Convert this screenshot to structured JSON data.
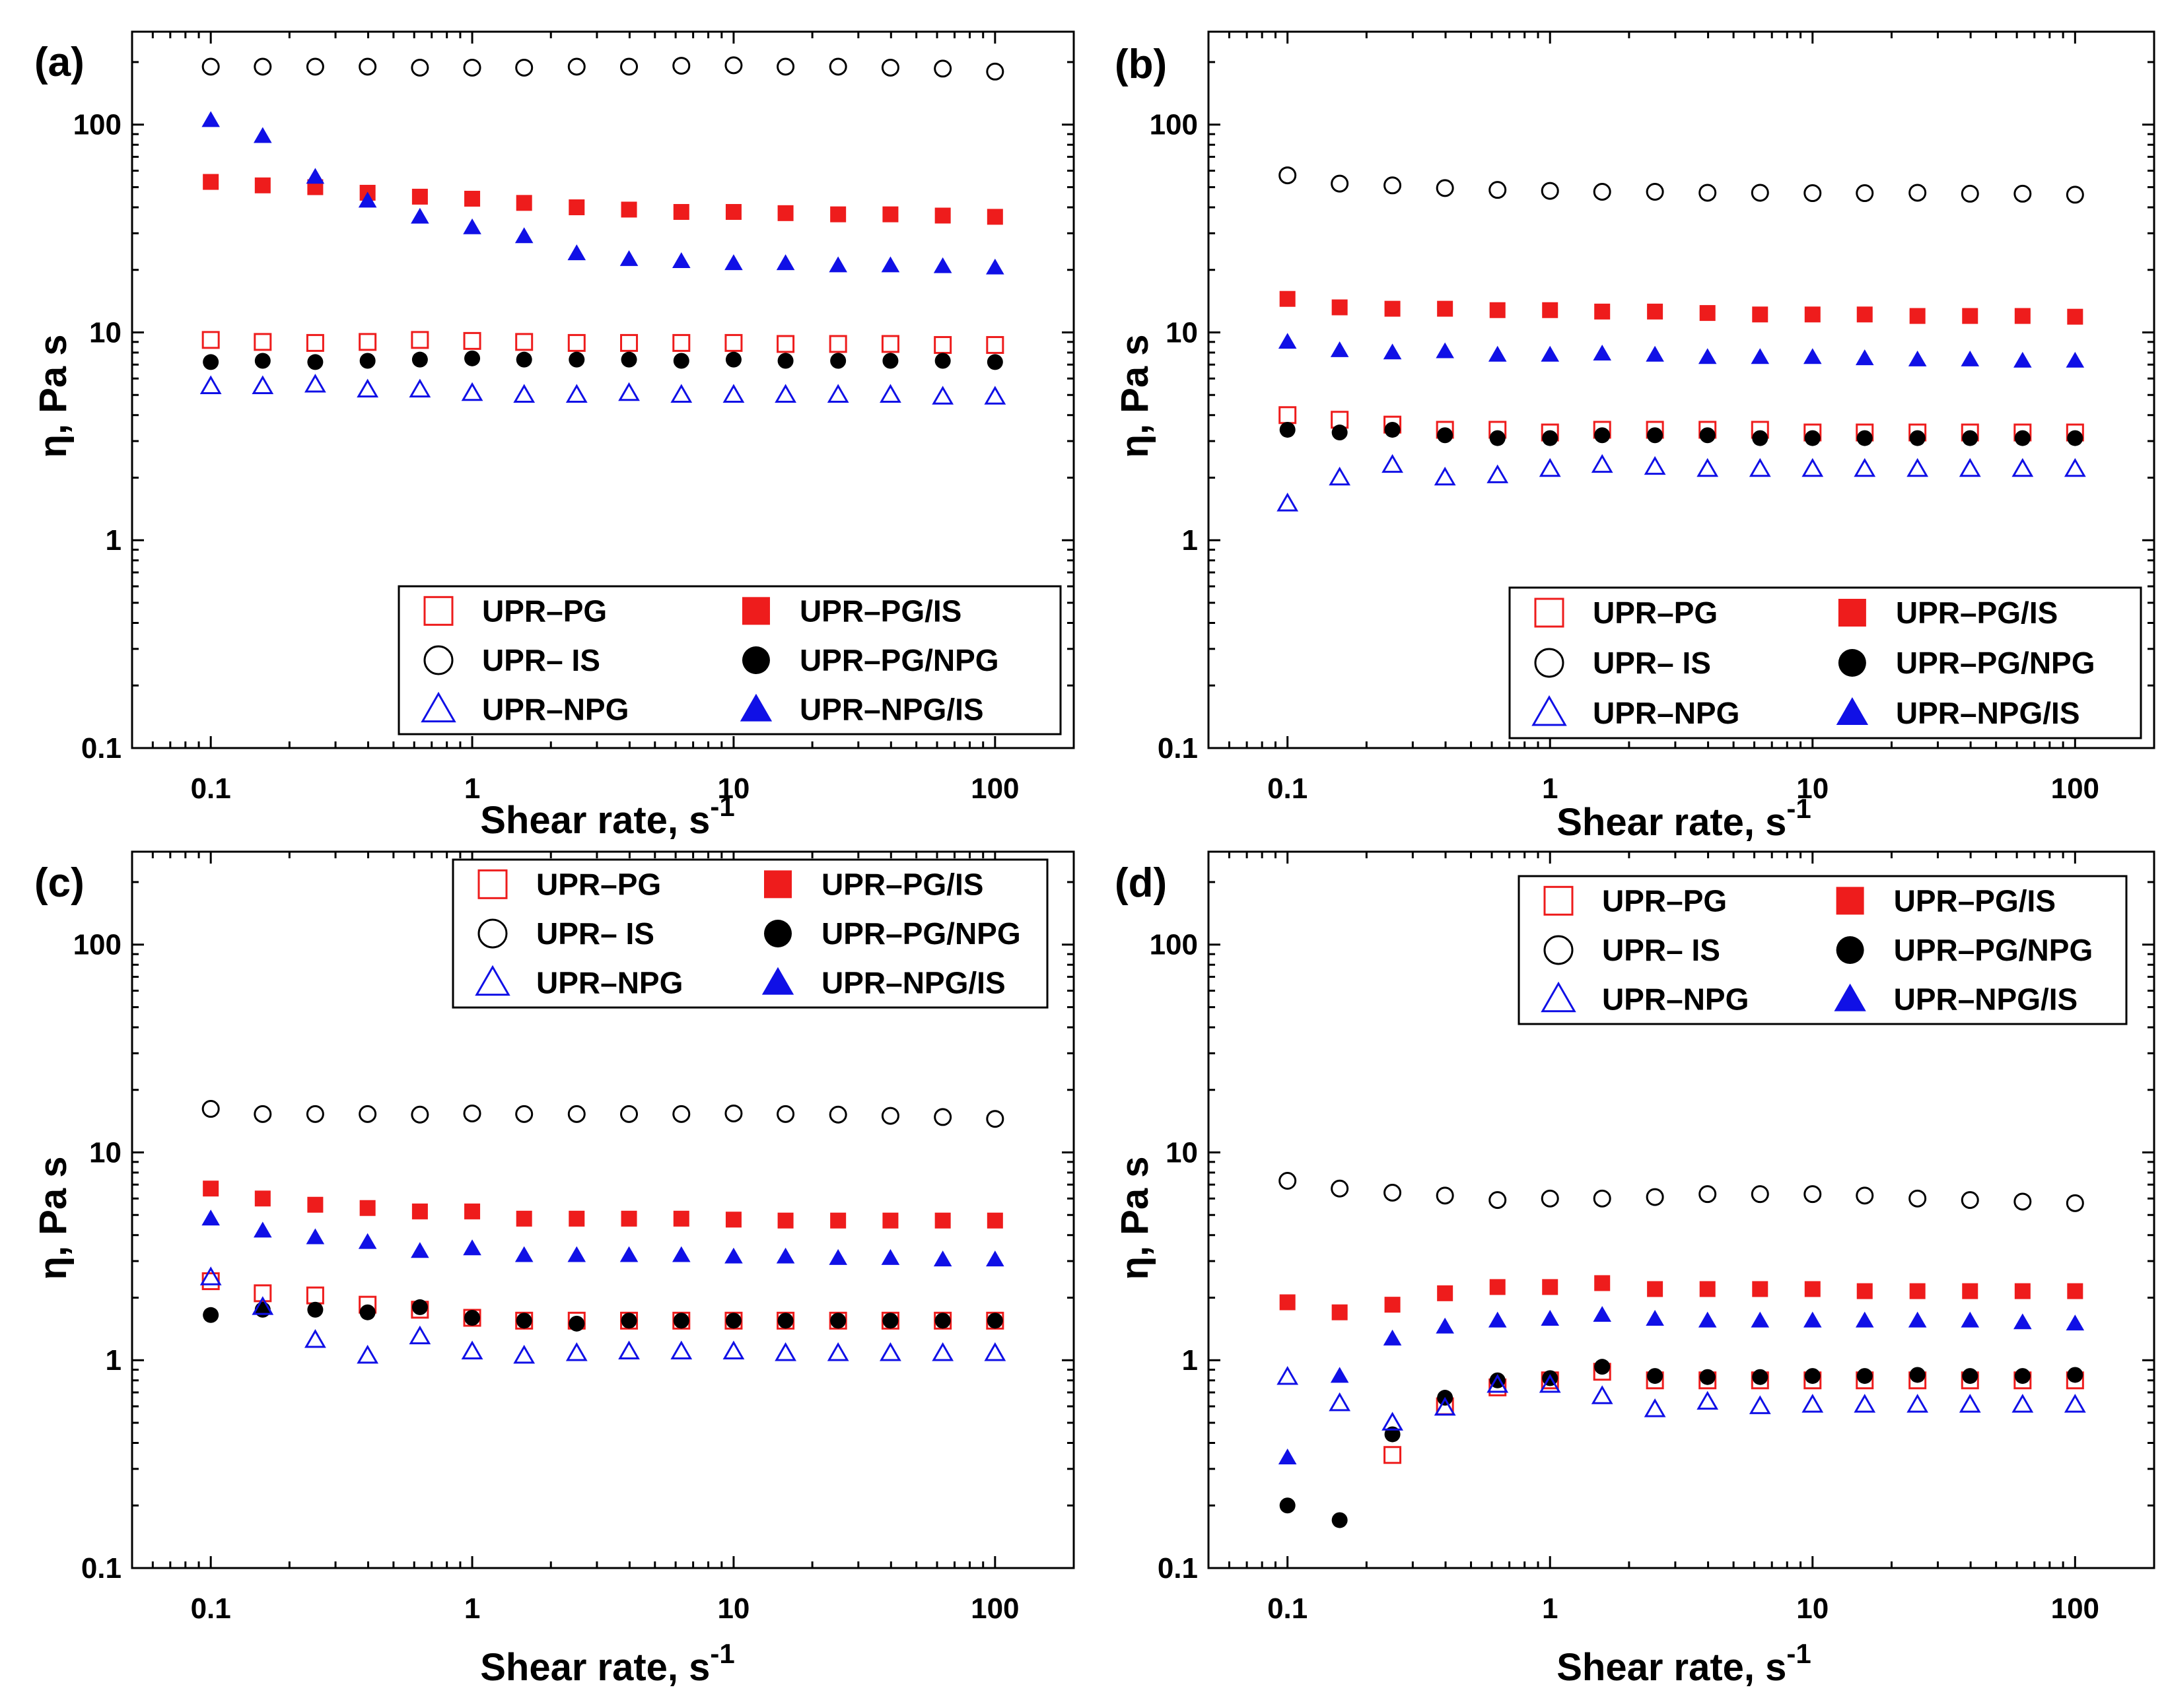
{
  "figure": {
    "type": "log-log scatter, 4 panels",
    "description_visible": "Viscosity vs shear rate"
  },
  "colors": {
    "red": "#ee1c1c",
    "black": "#000000",
    "blue": "#1010e6"
  },
  "chart_data": [
    {
      "panel": "(a)",
      "type": "scatter",
      "xscale": "log",
      "yscale": "log",
      "xlim": [
        0.05,
        200
      ],
      "ylim": [
        0.1,
        280
      ],
      "xticks": [
        "0.1",
        "1",
        "10",
        "100"
      ],
      "yticks": [
        "0.1",
        "1",
        "10",
        "100"
      ],
      "xlabel": "Shear rate, s",
      "xlabel_sup": "-1",
      "ylabel": "η, Pa s",
      "legend_position": "bottom-right",
      "x": [
        0.1,
        0.158,
        0.251,
        0.398,
        0.631,
        1,
        1.58,
        2.51,
        3.98,
        6.31,
        10,
        15.8,
        25.1,
        39.8,
        63.1,
        100
      ],
      "series": [
        {
          "name": "UPR–PG",
          "marker": "square-open",
          "color": "red",
          "values": [
            9.2,
            9.0,
            8.9,
            9.0,
            9.2,
            9.1,
            9.0,
            8.9,
            8.9,
            8.9,
            8.9,
            8.8,
            8.8,
            8.8,
            8.7,
            8.7
          ]
        },
        {
          "name": "UPR–PG/IS",
          "marker": "square-filled",
          "color": "red",
          "values": [
            53,
            51,
            50,
            47,
            45,
            44,
            42,
            40,
            39,
            38,
            38,
            37.5,
            37,
            37,
            36.5,
            36
          ]
        },
        {
          "name": "UPR– IS",
          "marker": "circle-open",
          "color": "black",
          "values": [
            190,
            190,
            190,
            190,
            188,
            188,
            188,
            190,
            190,
            192,
            193,
            190,
            190,
            188,
            186,
            180
          ]
        },
        {
          "name": "UPR–PG/NPG",
          "marker": "circle-filled",
          "color": "black",
          "values": [
            7.2,
            7.3,
            7.2,
            7.3,
            7.4,
            7.5,
            7.4,
            7.4,
            7.4,
            7.3,
            7.4,
            7.3,
            7.3,
            7.3,
            7.3,
            7.2
          ]
        },
        {
          "name": "UPR–NPG",
          "marker": "triangle-open",
          "color": "blue",
          "values": [
            5.5,
            5.5,
            5.6,
            5.3,
            5.3,
            5.1,
            5.0,
            5.0,
            5.1,
            5.0,
            5.0,
            5.0,
            5.0,
            5.0,
            4.9,
            4.9
          ]
        },
        {
          "name": "UPR–NPG/IS",
          "marker": "triangle-filled",
          "color": "blue",
          "values": [
            105,
            88,
            56,
            43,
            36,
            32,
            29,
            24,
            22.5,
            22,
            21.5,
            21.5,
            21,
            21,
            20.8,
            20.5
          ]
        }
      ]
    },
    {
      "panel": "(b)",
      "type": "scatter",
      "xscale": "log",
      "yscale": "log",
      "xlim": [
        0.05,
        200
      ],
      "ylim": [
        0.1,
        280
      ],
      "xticks": [
        "0.1",
        "1",
        "10",
        "100"
      ],
      "yticks": [
        "0.1",
        "1",
        "10",
        "100"
      ],
      "xlabel": "Shear rate, s",
      "xlabel_sup": "-1",
      "ylabel": "η, Pa s",
      "legend_position": "bottom-right",
      "x": [
        0.1,
        0.158,
        0.251,
        0.398,
        0.631,
        1,
        1.58,
        2.51,
        3.98,
        6.31,
        10,
        15.8,
        25.1,
        39.8,
        63.1,
        100
      ],
      "series": [
        {
          "name": "UPR–PG",
          "marker": "square-open",
          "color": "red",
          "values": [
            4.0,
            3.8,
            3.6,
            3.4,
            3.4,
            3.3,
            3.4,
            3.4,
            3.4,
            3.4,
            3.3,
            3.3,
            3.3,
            3.3,
            3.3,
            3.3
          ]
        },
        {
          "name": "UPR–PG/IS",
          "marker": "square-filled",
          "color": "red",
          "values": [
            14.5,
            13.2,
            13.0,
            13.0,
            12.8,
            12.8,
            12.6,
            12.6,
            12.4,
            12.2,
            12.2,
            12.2,
            12.0,
            12.0,
            12.0,
            11.9
          ]
        },
        {
          "name": "UPR– IS",
          "marker": "circle-open",
          "color": "black",
          "values": [
            57,
            52,
            51,
            49.5,
            48.5,
            48,
            47.5,
            47.5,
            47,
            47,
            46.8,
            46.8,
            47,
            46.5,
            46.5,
            46
          ]
        },
        {
          "name": "UPR–PG/NPG",
          "marker": "circle-filled",
          "color": "black",
          "values": [
            3.4,
            3.3,
            3.4,
            3.2,
            3.1,
            3.1,
            3.2,
            3.2,
            3.2,
            3.1,
            3.1,
            3.1,
            3.1,
            3.1,
            3.1,
            3.1
          ]
        },
        {
          "name": "UPR–NPG",
          "marker": "triangle-open",
          "color": "blue",
          "values": [
            1.5,
            2.0,
            2.3,
            2.0,
            2.05,
            2.2,
            2.3,
            2.25,
            2.2,
            2.2,
            2.2,
            2.2,
            2.2,
            2.2,
            2.2,
            2.2
          ]
        },
        {
          "name": "UPR–NPG/IS",
          "marker": "triangle-filled",
          "color": "blue",
          "values": [
            9.0,
            8.2,
            8.0,
            8.1,
            7.8,
            7.8,
            7.9,
            7.8,
            7.6,
            7.6,
            7.6,
            7.5,
            7.4,
            7.4,
            7.3,
            7.3
          ]
        }
      ]
    },
    {
      "panel": "(c)",
      "type": "scatter",
      "xscale": "log",
      "yscale": "log",
      "xlim": [
        0.05,
        200
      ],
      "ylim": [
        0.1,
        280
      ],
      "xticks": [
        "0.1",
        "1",
        "10",
        "100"
      ],
      "yticks": [
        "0.1",
        "1",
        "10",
        "100"
      ],
      "xlabel": "Shear rate, s",
      "xlabel_sup": "-1",
      "ylabel": "η, Pa s",
      "legend_position": "top-right",
      "x": [
        0.1,
        0.158,
        0.251,
        0.398,
        0.631,
        1,
        1.58,
        2.51,
        3.98,
        6.31,
        10,
        15.8,
        25.1,
        39.8,
        63.1,
        100
      ],
      "series": [
        {
          "name": "UPR–PG",
          "marker": "square-open",
          "color": "red",
          "values": [
            2.4,
            2.1,
            2.05,
            1.85,
            1.75,
            1.6,
            1.55,
            1.55,
            1.55,
            1.55,
            1.55,
            1.55,
            1.55,
            1.55,
            1.55,
            1.55
          ]
        },
        {
          "name": "UPR–PG/IS",
          "marker": "square-filled",
          "color": "red",
          "values": [
            6.7,
            6.0,
            5.6,
            5.4,
            5.2,
            5.2,
            4.8,
            4.8,
            4.8,
            4.8,
            4.75,
            4.7,
            4.7,
            4.7,
            4.7,
            4.7
          ]
        },
        {
          "name": "UPR– IS",
          "marker": "circle-open",
          "color": "black",
          "values": [
            16.2,
            15.3,
            15.3,
            15.3,
            15.2,
            15.4,
            15.3,
            15.3,
            15.3,
            15.3,
            15.4,
            15.3,
            15.2,
            15.0,
            14.8,
            14.5
          ]
        },
        {
          "name": "UPR–PG/NPG",
          "marker": "circle-filled",
          "color": "black",
          "values": [
            1.65,
            1.75,
            1.75,
            1.7,
            1.8,
            1.6,
            1.55,
            1.5,
            1.55,
            1.55,
            1.55,
            1.55,
            1.55,
            1.55,
            1.55,
            1.55
          ]
        },
        {
          "name": "UPR–NPG",
          "marker": "triangle-open",
          "color": "blue",
          "values": [
            2.5,
            1.8,
            1.25,
            1.05,
            1.3,
            1.1,
            1.05,
            1.08,
            1.1,
            1.1,
            1.1,
            1.08,
            1.08,
            1.08,
            1.08,
            1.08
          ]
        },
        {
          "name": "UPR–NPG/IS",
          "marker": "triangle-filled",
          "color": "blue",
          "values": [
            4.8,
            4.2,
            3.9,
            3.7,
            3.35,
            3.45,
            3.2,
            3.2,
            3.2,
            3.2,
            3.15,
            3.15,
            3.1,
            3.1,
            3.05,
            3.05
          ]
        }
      ]
    },
    {
      "panel": "(d)",
      "type": "scatter",
      "xscale": "log",
      "yscale": "log",
      "xlim": [
        0.05,
        200
      ],
      "ylim": [
        0.1,
        280
      ],
      "xticks": [
        "0.1",
        "1",
        "10",
        "100"
      ],
      "yticks": [
        "0.1",
        "1",
        "10",
        "100"
      ],
      "xlabel": "Shear rate, s",
      "xlabel_sup": "-1",
      "ylabel": "η, Pa s",
      "legend_position": "top-right",
      "x": [
        0.1,
        0.158,
        0.251,
        0.398,
        0.631,
        1,
        1.58,
        2.51,
        3.98,
        6.31,
        10,
        15.8,
        25.1,
        39.8,
        63.1,
        100
      ],
      "series": [
        {
          "name": "UPR–PG",
          "marker": "square-open",
          "color": "red",
          "values": [
            null,
            null,
            0.35,
            0.6,
            0.74,
            0.8,
            0.88,
            0.8,
            0.8,
            0.8,
            0.8,
            0.8,
            0.8,
            0.8,
            0.8,
            0.8
          ]
        },
        {
          "name": "UPR–PG/IS",
          "marker": "square-filled",
          "color": "red",
          "values": [
            1.9,
            1.7,
            1.85,
            2.1,
            2.25,
            2.25,
            2.35,
            2.2,
            2.2,
            2.2,
            2.2,
            2.15,
            2.15,
            2.15,
            2.15,
            2.15
          ]
        },
        {
          "name": "UPR– IS",
          "marker": "circle-open",
          "color": "black",
          "values": [
            7.3,
            6.7,
            6.4,
            6.2,
            5.9,
            6.0,
            6.0,
            6.1,
            6.3,
            6.3,
            6.3,
            6.2,
            6.0,
            5.9,
            5.8,
            5.7
          ]
        },
        {
          "name": "UPR–PG/NPG",
          "marker": "circle-filled",
          "color": "black",
          "values": [
            0.2,
            0.17,
            0.44,
            0.66,
            0.8,
            0.82,
            0.93,
            0.84,
            0.83,
            0.83,
            0.84,
            0.84,
            0.85,
            0.84,
            0.84,
            0.85
          ]
        },
        {
          "name": "UPR–NPG",
          "marker": "triangle-open",
          "color": "blue",
          "values": [
            0.83,
            0.62,
            0.5,
            0.59,
            0.76,
            0.76,
            0.67,
            0.58,
            0.63,
            0.6,
            0.61,
            0.61,
            0.61,
            0.61,
            0.61,
            0.61
          ]
        },
        {
          "name": "UPR–NPG/IS",
          "marker": "triangle-filled",
          "color": "blue",
          "values": [
            0.34,
            0.84,
            1.27,
            1.45,
            1.55,
            1.58,
            1.65,
            1.58,
            1.55,
            1.55,
            1.55,
            1.55,
            1.55,
            1.55,
            1.52,
            1.5
          ]
        }
      ]
    }
  ]
}
